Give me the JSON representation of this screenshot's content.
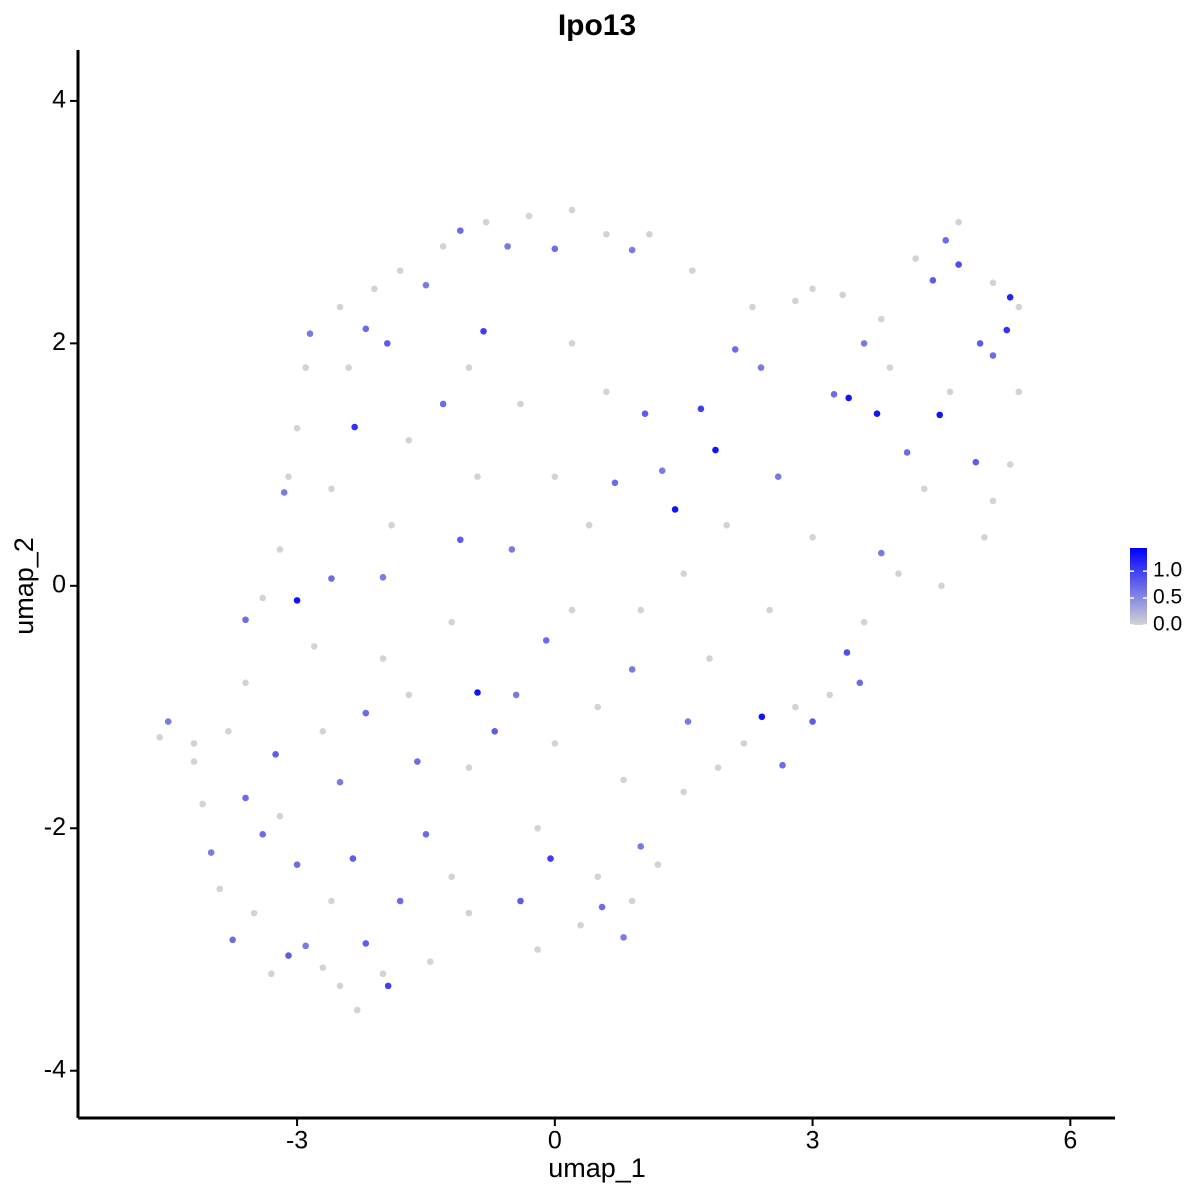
{
  "chart_data": {
    "type": "scatter",
    "title": "Ipo13",
    "xlabel": "umap_1",
    "ylabel": "umap_2",
    "xlim": [
      -5.55,
      6.52
    ],
    "ylim": [
      -4.39,
      4.42
    ],
    "xticks": [
      -3,
      0,
      3,
      6
    ],
    "yticks": [
      -4,
      -2,
      0,
      2,
      4
    ],
    "color_low": "#d3d3d3",
    "color_high": "#0000ff",
    "clim": [
      0,
      1.43
    ],
    "cticks": [
      {
        "value": 0,
        "label": "0.0"
      },
      0.5,
      {
        "value": 1,
        "label": "1.0"
      }
    ],
    "x": [
      -3.0,
      -0.9,
      1.4,
      1.87,
      2.41,
      3.42,
      3.75,
      4.48,
      5.3,
      5.26,
      1.7,
      -0.83,
      -2.33,
      -0.05,
      -1.94,
      -3.6,
      -3.15,
      -2.85,
      -2.2,
      -1.95,
      -1.5,
      -1.1,
      -0.55,
      0.0,
      0.9,
      -1.3,
      -2.6,
      -2.0,
      -1.1,
      -0.5,
      0.7,
      1.05,
      1.25,
      2.1,
      2.4,
      2.6,
      3.25,
      3.6,
      4.1,
      4.4,
      4.55,
      4.7,
      4.95,
      5.1,
      4.9,
      3.8,
      3.4,
      3.55,
      3.0,
      2.65,
      1.55,
      0.9,
      -0.1,
      -0.45,
      -0.7,
      -1.6,
      -2.2,
      -2.5,
      -3.25,
      -3.6,
      -3.4,
      -4.0,
      -3.0,
      -2.35,
      -2.2,
      -1.8,
      -1.5,
      -0.4,
      0.55,
      0.8,
      1.0,
      -3.75,
      -3.1,
      -2.9,
      -4.5,
      -4.6,
      -4.2,
      -4.1,
      -3.9,
      -3.5,
      -3.3,
      -2.7,
      -2.5,
      -2.3,
      -2.0,
      -1.45,
      -1.0,
      -0.2,
      0.3,
      0.5,
      0.9,
      1.2,
      1.5,
      1.9,
      2.2,
      2.8,
      3.2,
      3.6,
      4.0,
      4.5,
      5.0,
      5.1,
      5.3,
      5.4,
      5.4,
      5.1,
      4.7,
      4.2,
      3.8,
      3.35,
      3.0,
      2.8,
      2.3,
      1.6,
      1.1,
      0.6,
      0.2,
      -0.3,
      -0.8,
      -1.3,
      -1.8,
      -2.1,
      -2.5,
      -2.9,
      -3.0,
      -3.1,
      -3.2,
      -3.4,
      -3.6,
      -3.8,
      -2.4,
      -1.7,
      -1.0,
      -0.4,
      0.2,
      0.6,
      -2.6,
      -1.9,
      -0.9,
      0.0,
      0.4,
      -2.8,
      -2.0,
      -1.2,
      0.2,
      0.5,
      1.0,
      1.8,
      2.5,
      3.0,
      2.0,
      1.5,
      4.3,
      4.6,
      3.9,
      -2.7,
      -1.7,
      -1.0,
      0.0,
      0.8,
      -0.2,
      -1.2,
      -2.6,
      -3.2,
      -4.2
    ],
    "y": [
      -0.12,
      -0.88,
      0.63,
      1.12,
      -1.08,
      1.55,
      1.42,
      1.41,
      2.38,
      2.11,
      1.46,
      2.1,
      1.31,
      -2.25,
      -3.3,
      -0.28,
      0.77,
      2.08,
      2.12,
      2.0,
      2.48,
      2.93,
      2.8,
      2.78,
      2.77,
      1.5,
      0.06,
      0.07,
      0.38,
      0.3,
      0.85,
      1.42,
      0.95,
      1.95,
      1.8,
      0.9,
      1.58,
      2.0,
      1.1,
      2.52,
      2.85,
      2.65,
      2.0,
      1.9,
      1.02,
      0.27,
      -0.55,
      -0.8,
      -1.12,
      -1.48,
      -1.12,
      -0.69,
      -0.45,
      -0.9,
      -1.2,
      -1.45,
      -1.05,
      -1.62,
      -1.39,
      -1.75,
      -2.05,
      -2.2,
      -2.3,
      -2.25,
      -2.95,
      -2.6,
      -2.05,
      -2.6,
      -2.65,
      -2.9,
      -2.15,
      -2.92,
      -3.05,
      -2.97,
      -1.12,
      -1.25,
      -1.45,
      -1.8,
      -2.5,
      -2.7,
      -3.2,
      -3.15,
      -3.3,
      -3.5,
      -3.2,
      -3.1,
      -2.7,
      -3.0,
      -2.8,
      -2.4,
      -2.6,
      -2.3,
      -1.7,
      -1.5,
      -1.3,
      -1.0,
      -0.9,
      -0.3,
      0.1,
      0.0,
      0.4,
      0.7,
      1.0,
      1.6,
      2.3,
      2.5,
      3.0,
      2.7,
      2.2,
      2.4,
      2.45,
      2.35,
      2.3,
      2.6,
      2.9,
      2.9,
      3.1,
      3.05,
      3.0,
      2.8,
      2.6,
      2.45,
      2.3,
      1.8,
      1.3,
      0.9,
      0.3,
      -0.1,
      -0.8,
      -1.2,
      1.8,
      1.2,
      1.8,
      1.5,
      2.0,
      1.6,
      0.8,
      0.5,
      0.9,
      0.9,
      0.5,
      -0.5,
      -0.6,
      -0.3,
      -0.2,
      -1.0,
      -0.2,
      -0.6,
      -0.2,
      0.4,
      0.5,
      0.1,
      0.8,
      1.6,
      1.8,
      -1.2,
      -0.9,
      -1.5,
      -1.3,
      -1.6,
      -2.0,
      -2.4,
      -2.6,
      -1.9,
      -1.3
    ],
    "values": [
      1.3,
      1.3,
      1.3,
      1.3,
      1.3,
      1.3,
      1.3,
      1.3,
      1.2,
      1.1,
      1.0,
      1.0,
      1.1,
      1.0,
      1.0,
      0.7,
      0.6,
      0.6,
      0.7,
      0.8,
      0.6,
      0.7,
      0.6,
      0.7,
      0.6,
      0.7,
      0.7,
      0.6,
      0.8,
      0.6,
      0.7,
      0.8,
      0.6,
      0.7,
      0.6,
      0.6,
      0.7,
      0.6,
      0.7,
      0.8,
      0.7,
      0.9,
      0.8,
      0.7,
      0.8,
      0.6,
      0.9,
      0.7,
      0.8,
      0.7,
      0.6,
      0.6,
      0.7,
      0.6,
      0.8,
      0.7,
      0.7,
      0.6,
      0.8,
      0.7,
      0.7,
      0.6,
      0.7,
      0.8,
      0.8,
      0.7,
      0.7,
      0.8,
      0.7,
      0.6,
      0.6,
      0.7,
      0.8,
      0.6,
      0.6,
      0,
      0,
      0,
      0,
      0,
      0,
      0,
      0,
      0,
      0,
      0,
      0,
      0,
      0,
      0,
      0,
      0,
      0,
      0,
      0,
      0,
      0,
      0,
      0,
      0,
      0,
      0,
      0,
      0,
      0,
      0,
      0,
      0,
      0,
      0,
      0,
      0,
      0,
      0,
      0,
      0,
      0,
      0,
      0,
      0,
      0,
      0,
      0,
      0,
      0,
      0,
      0,
      0,
      0,
      0,
      0,
      0,
      0,
      0,
      0,
      0,
      0,
      0,
      0,
      0,
      0,
      0,
      0,
      0,
      0,
      0,
      0,
      0,
      0,
      0,
      0,
      0,
      0,
      0,
      0,
      0,
      0,
      0,
      0,
      0,
      0,
      0,
      0,
      0,
      0
    ]
  }
}
